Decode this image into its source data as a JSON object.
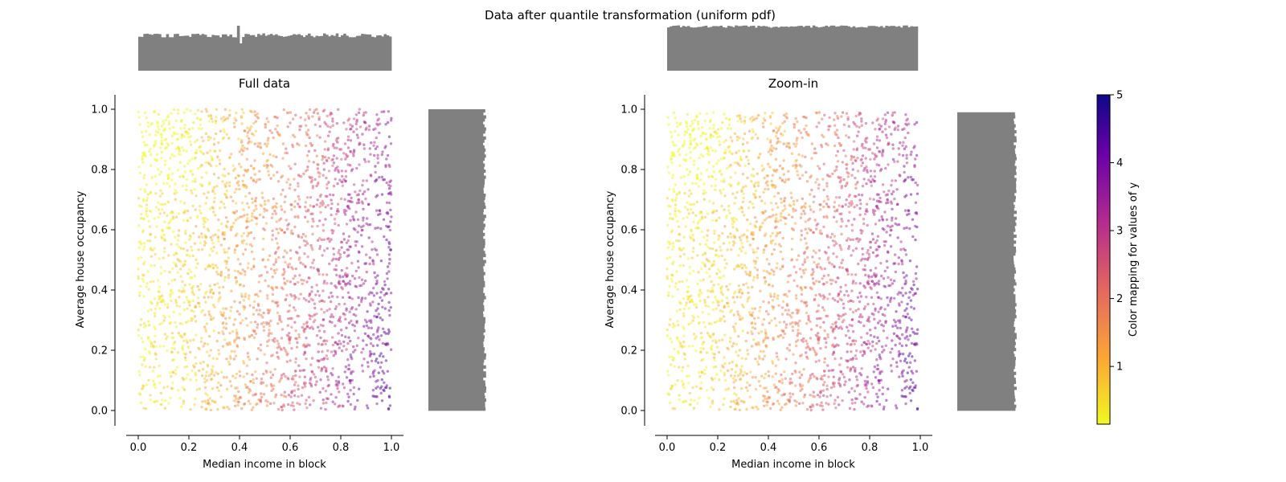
{
  "chart_data": {
    "type": "scatter",
    "suptitle": "Data after quantile transformation (uniform pdf)",
    "panels": [
      {
        "title": "Full data",
        "xlabel": "Median income in block",
        "ylabel": "Average house occupancy",
        "xlim": [
          -0.05,
          1.05
        ],
        "ylim": [
          -0.05,
          1.05
        ],
        "xticks": [
          "0.0",
          "0.2",
          "0.4",
          "0.6",
          "0.8",
          "1.0"
        ],
        "yticks": [
          "0.0",
          "0.2",
          "0.4",
          "0.6",
          "0.8",
          "1.0"
        ],
        "data_range": {
          "x": [
            0.0,
            1.0
          ],
          "y": [
            0.0,
            1.0
          ]
        },
        "marginal_histograms": {
          "top": "x",
          "right": "y",
          "color": "#808080"
        }
      },
      {
        "title": "Zoom-in",
        "xlabel": "Median income in block",
        "ylabel": "Average house occupancy",
        "xlim": [
          -0.05,
          1.05
        ],
        "ylim": [
          -0.05,
          1.05
        ],
        "xticks": [
          "0.0",
          "0.2",
          "0.4",
          "0.6",
          "0.8",
          "1.0"
        ],
        "yticks": [
          "0.0",
          "0.2",
          "0.4",
          "0.6",
          "0.8",
          "1.0"
        ],
        "data_range": {
          "x": [
            0.0,
            0.99
          ],
          "y": [
            0.0,
            0.99
          ]
        },
        "marginal_histograms": {
          "top": "x",
          "right": "y",
          "color": "#808080"
        }
      }
    ],
    "colorbar": {
      "label": "Color mapping for values of y",
      "colormap": "plasma_r",
      "range": [
        0.15,
        5.0
      ],
      "ticks": [
        "1",
        "2",
        "3",
        "4",
        "5"
      ],
      "tick_values": [
        1,
        2,
        3,
        4,
        5
      ]
    },
    "marker_alpha": 0.5,
    "colors": {
      "histogram": "#808080",
      "plasma_r_stops": [
        "#f0f921",
        "#fca636",
        "#e16462",
        "#b12a90",
        "#6a00a8",
        "#0d0887"
      ]
    }
  }
}
